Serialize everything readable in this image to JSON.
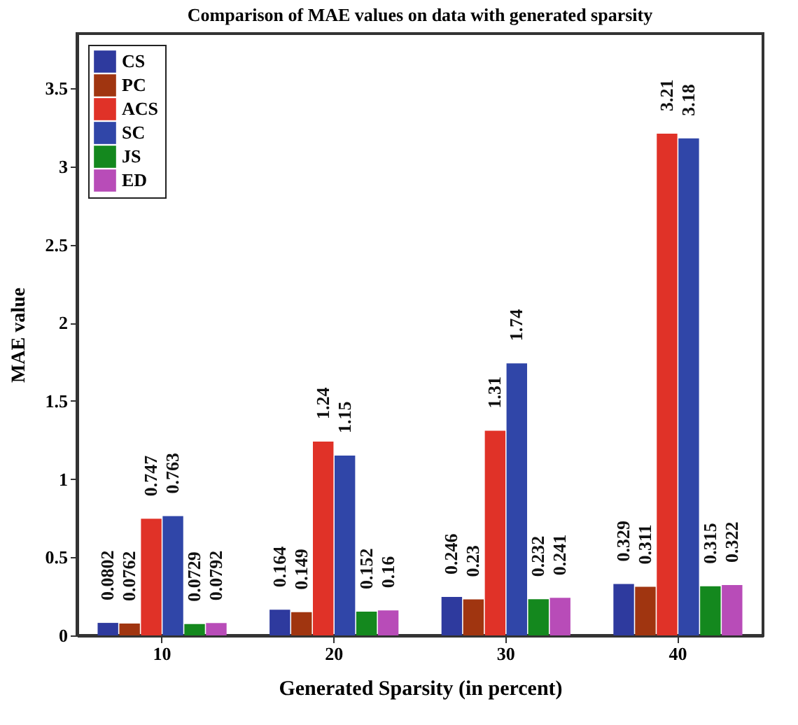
{
  "chart_data": {
    "type": "bar",
    "title": "Comparison of MAE values on data with generated sparsity",
    "xlabel": "Generated Sparsity (in percent)",
    "ylabel": "MAE value",
    "categories": [
      "10",
      "20",
      "30",
      "40"
    ],
    "series": [
      {
        "name": "CS",
        "color": "#2e3a9e",
        "values": [
          0.0802,
          0.164,
          0.246,
          0.329
        ]
      },
      {
        "name": "PC",
        "color": "#a03510",
        "values": [
          0.0762,
          0.149,
          0.23,
          0.311
        ]
      },
      {
        "name": "ACS",
        "color": "#e03228",
        "values": [
          0.747,
          1.24,
          1.31,
          3.21
        ]
      },
      {
        "name": "SC",
        "color": "#3046a8",
        "values": [
          0.763,
          1.15,
          1.74,
          3.18
        ]
      },
      {
        "name": "JS",
        "color": "#14881e",
        "values": [
          0.0729,
          0.152,
          0.232,
          0.315
        ]
      },
      {
        "name": "ED",
        "color": "#b84cb8",
        "values": [
          0.0792,
          0.16,
          0.241,
          0.322
        ]
      }
    ],
    "ylim": [
      0,
      3.85
    ],
    "yticks": [
      0,
      0.5,
      1,
      1.5,
      2,
      2.5,
      3,
      3.5
    ],
    "data_labels": true,
    "legend": "top left",
    "grid": false
  }
}
